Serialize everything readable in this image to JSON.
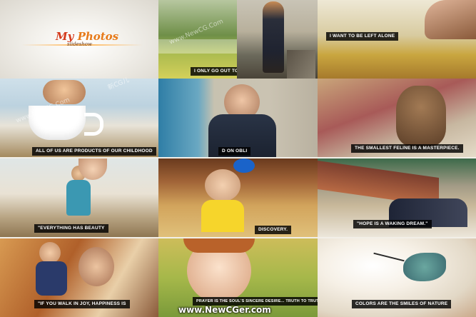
{
  "title": {
    "word1": "My",
    "word2": "Photos",
    "subtitle": "slideshow"
  },
  "captions": {
    "c1": "I ONLY GO OUT TO GET ME A FR",
    "c2": "I WANT TO BE LEFT ALONE",
    "c3": "ALL OF US ARE PRODUCTS OF OUR CHILDHOOD",
    "c4": "D ON OBLI",
    "c5": "THE SMALLEST FELINE IS A MASTERPIECE.",
    "c6": "\"EVERYTHING HAS BEAUTY",
    "c7": "DISCOVERY.",
    "c8": "\"HOPE IS A WAKING DREAM.\"",
    "c9": "\"IF YOU WALK IN JOY, HAPPINESS IS",
    "c10": "PRAYER IS THE SOUL'S SINCERE DESIRE... TRUTH TO TRUTH",
    "c11": "COLORS ARE THE SMILES OF NATURE"
  },
  "watermark": {
    "url": "www.NewCG.Com",
    "cn": "新CG儿"
  },
  "footer": "www.NewCGer.com",
  "colors": {
    "caption_bg": "#000000",
    "title_red": "#d43a1c",
    "title_orange": "#e77a1a"
  }
}
